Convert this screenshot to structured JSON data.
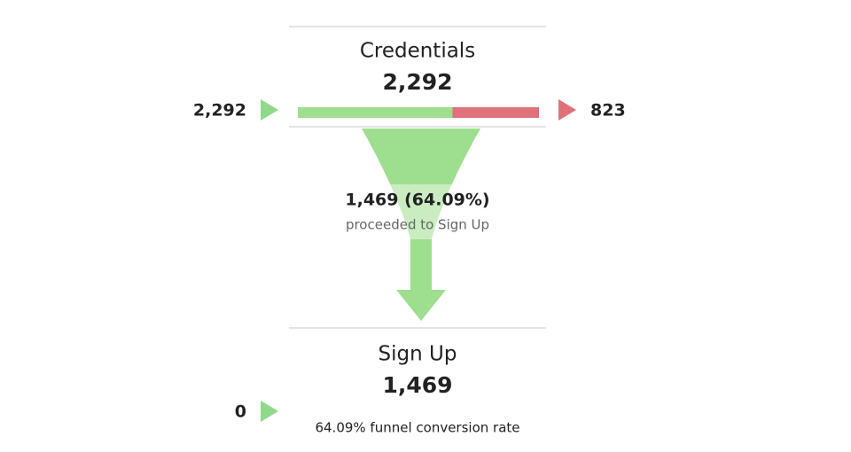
{
  "steps": [
    {
      "name": "Credentials",
      "total": "2,292",
      "entrances": "2,292",
      "exits": "823"
    },
    {
      "name": "Sign Up",
      "total": "1,469",
      "entrances": "0"
    }
  ],
  "transition": {
    "label": "1,469 (64.09%)",
    "caption": "proceeded to Sign Up"
  },
  "footer": "64.09% funnel conversion rate"
}
